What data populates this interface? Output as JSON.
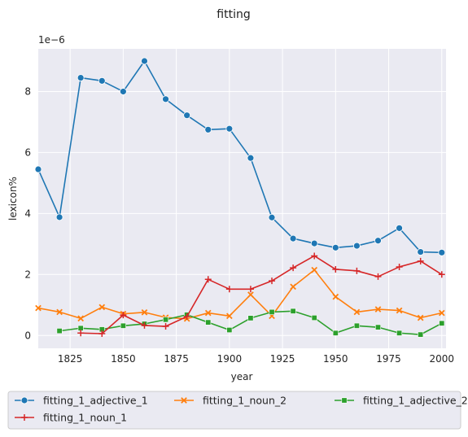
{
  "chart_data": {
    "type": "line",
    "title": "fitting",
    "xlabel": "year",
    "ylabel": "lexicon%",
    "y_offset_text": "1e−6",
    "y_multiplier": 1e-06,
    "xlim": [
      1810,
      2002
    ],
    "ylim": [
      -0.42,
      9.4
    ],
    "x_ticks": [
      1825,
      1850,
      1875,
      1900,
      1925,
      1950,
      1975,
      2000
    ],
    "y_ticks": [
      0,
      2,
      4,
      6,
      8
    ],
    "grid": true,
    "legend_position": "bottom",
    "series": [
      {
        "name": "fitting_1_adjective_1",
        "color": "#1f77b4",
        "marker": "circle",
        "x": [
          1810,
          1820,
          1830,
          1840,
          1850,
          1860,
          1870,
          1880,
          1890,
          1900,
          1910,
          1920,
          1930,
          1940,
          1950,
          1960,
          1970,
          1980,
          1990,
          2000
        ],
        "values": [
          5.45,
          3.88,
          8.45,
          8.35,
          8.0,
          9.0,
          7.75,
          7.22,
          6.75,
          6.78,
          5.82,
          3.87,
          3.18,
          3.02,
          2.88,
          2.94,
          3.11,
          3.52,
          2.74,
          2.72
        ]
      },
      {
        "name": "fitting_1_noun_2",
        "color": "#ff7f0e",
        "marker": "x",
        "x": [
          1810,
          1820,
          1830,
          1840,
          1850,
          1860,
          1870,
          1880,
          1890,
          1900,
          1910,
          1920,
          1930,
          1940,
          1950,
          1960,
          1970,
          1980,
          1990,
          2000
        ],
        "values": [
          0.9,
          0.77,
          0.56,
          0.93,
          0.71,
          0.76,
          0.59,
          0.55,
          0.74,
          0.64,
          1.34,
          0.64,
          1.6,
          2.15,
          1.27,
          0.77,
          0.86,
          0.82,
          0.58,
          0.74
        ]
      },
      {
        "name": "fitting_1_adjective_2",
        "color": "#2ca02c",
        "marker": "square",
        "x": [
          1820,
          1830,
          1840,
          1850,
          1860,
          1870,
          1880,
          1890,
          1900,
          1910,
          1920,
          1930,
          1940,
          1950,
          1960,
          1970,
          1980,
          1990,
          2000
        ],
        "values": [
          0.15,
          0.24,
          0.2,
          0.32,
          0.38,
          0.52,
          0.68,
          0.43,
          0.18,
          0.57,
          0.77,
          0.8,
          0.58,
          0.08,
          0.32,
          0.27,
          0.08,
          0.03,
          0.4
        ]
      },
      {
        "name": "fitting_1_noun_1",
        "color": "#d62728",
        "marker": "plus",
        "x": [
          1830,
          1840,
          1850,
          1860,
          1870,
          1880,
          1890,
          1900,
          1910,
          1920,
          1930,
          1940,
          1950,
          1960,
          1970,
          1980,
          1990,
          2000
        ],
        "values": [
          0.08,
          0.06,
          0.67,
          0.33,
          0.3,
          0.62,
          1.84,
          1.52,
          1.52,
          1.79,
          2.22,
          2.61,
          2.17,
          2.12,
          1.93,
          2.25,
          2.44,
          2.0
        ]
      }
    ],
    "legend_order": [
      "fitting_1_adjective_1",
      "fitting_1_noun_2",
      "fitting_1_adjective_2",
      "fitting_1_noun_1"
    ]
  }
}
